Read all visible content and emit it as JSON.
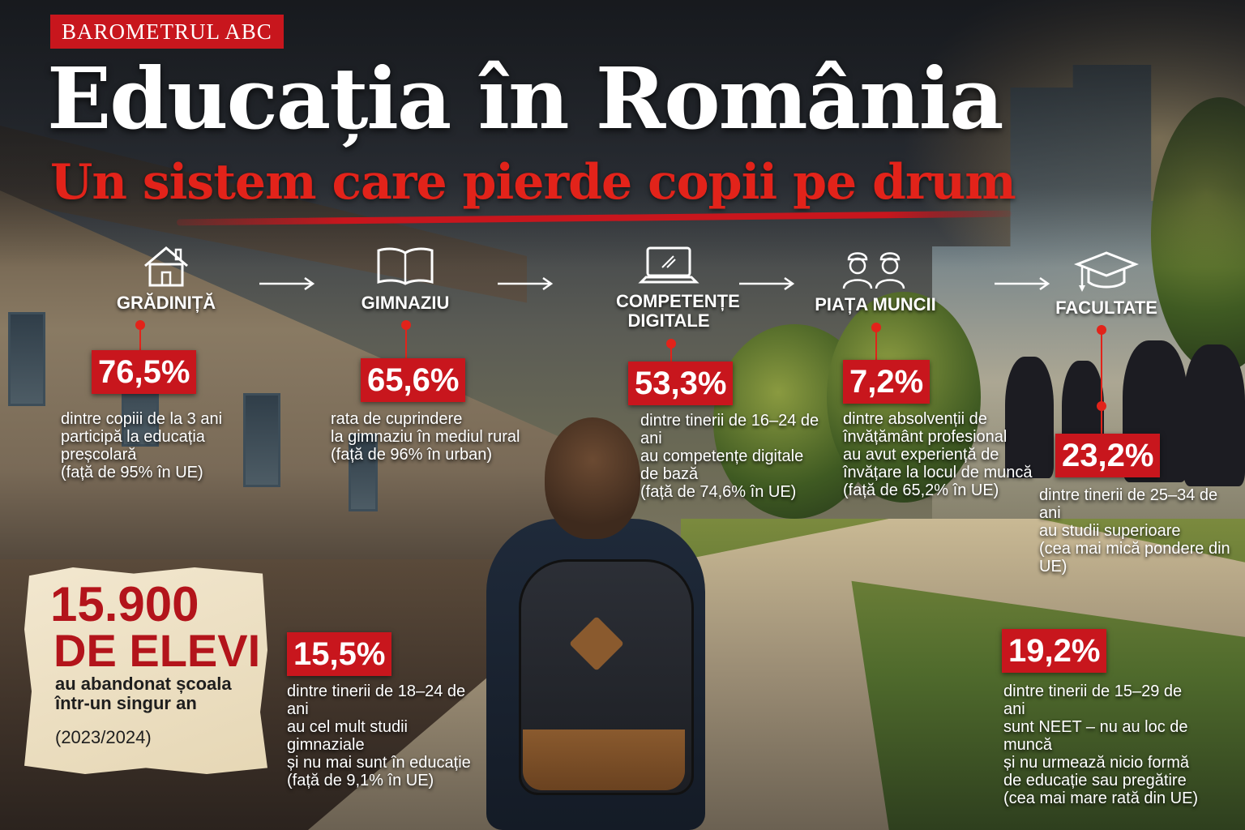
{
  "header": {
    "tag": "BAROMETRUL ABC",
    "title": "Educația în România",
    "subtitle": "Un sistem care pierde copii pe drum"
  },
  "steps": [
    {
      "label": "GRĂDINIȚĂ",
      "icon": "house-icon"
    },
    {
      "label": "GIMNAZIU",
      "icon": "book-icon"
    },
    {
      "label": "COMPETENȚE DIGITALE",
      "icon": "laptop-icon"
    },
    {
      "label": "PIAȚA MUNCII",
      "icon": "workers-icon"
    },
    {
      "label": "FACULTATE",
      "icon": "graduation-cap-icon"
    }
  ],
  "stats": {
    "gradinita": {
      "value": "76,5%",
      "desc": "dintre copiii de la 3 ani\nparticipă la educația\npreșcolară\n(față de 95% în UE)"
    },
    "gimnaziu": {
      "value": "65,6%",
      "desc": "rata de cuprindere\nla gimnaziu în mediul rural\n(față de 96% în urban)"
    },
    "digitale": {
      "value": "53,3%",
      "desc": "dintre tinerii de 16–24 de ani\nau competențe digitale\nde bază\n(față de 74,6% în UE)"
    },
    "munca": {
      "value": "7,2%",
      "desc": "dintre absolvenții de\nînvățământ profesional\nau avut experiență de\nînvățare la locul de muncă\n(față de 65,2% în UE)"
    },
    "facultate": {
      "value": "23,2%",
      "desc": "dintre tinerii de 25–34 de ani\nau studii superioare\n(cea mai mică pondere din UE)"
    },
    "abandon": {
      "value": "15,5%",
      "desc": "dintre tinerii de 18–24 de ani\nau cel mult studii gimnaziale\nși nu mai sunt în educație\n(față de 9,1% în UE)"
    },
    "neet": {
      "value": "19,2%",
      "desc": "dintre tinerii de 15–29 de ani\nsunt NEET – nu au loc de muncă\nși nu urmează nicio formă\nde educație sau pregătire\n(cea mai mare rată din UE)"
    }
  },
  "note": {
    "number": "15.900",
    "unit": "DE ELEVI",
    "desc": "au abandonat școala\nîntr-un singur an",
    "year": "(2023/2024)"
  },
  "colors": {
    "accent": "#c8161d",
    "title": "#ffffff",
    "subtitle": "#e2231a"
  }
}
